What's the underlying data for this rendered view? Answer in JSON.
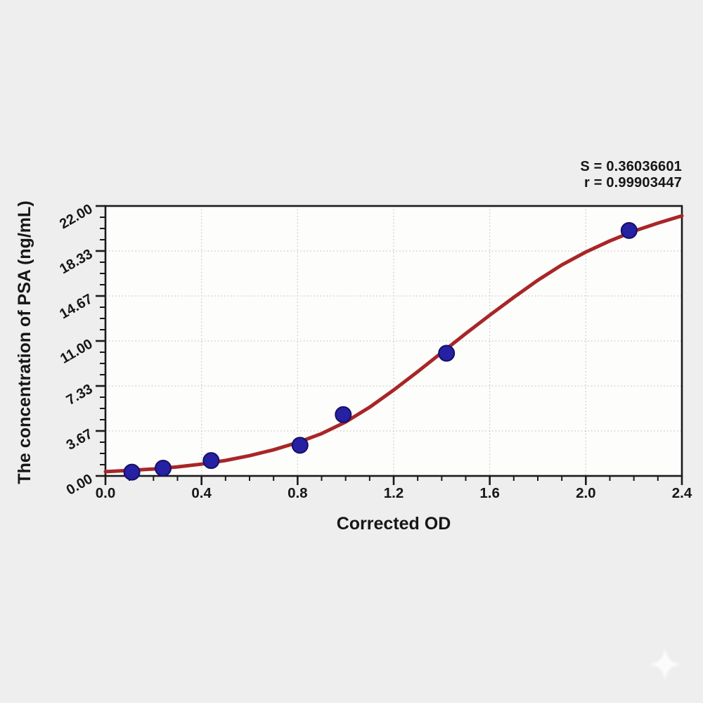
{
  "page": {
    "background": "#eeeeee"
  },
  "chart_data": {
    "type": "scatter",
    "title": "",
    "xlabel": "Corrected OD",
    "ylabel": "The concentration of PSA (ng/mL)",
    "xlim": [
      0,
      2.4
    ],
    "ylim": [
      0,
      22
    ],
    "grid": {
      "show": true,
      "style": "dotted"
    },
    "legend": "none",
    "x_ticks": {
      "values": [
        0,
        0.4,
        0.8,
        1.2,
        1.6,
        2.0,
        2.4
      ],
      "labels": [
        "0.0",
        "0.4",
        "0.8",
        "1.2",
        "1.6",
        "2.0",
        "2.4"
      ],
      "minor_step": 0.1
    },
    "y_ticks": {
      "values": [
        0,
        3.6667,
        7.3333,
        11,
        14.6667,
        18.3333,
        22
      ],
      "labels": [
        "0.00",
        "3.67",
        "7.33",
        "11.00",
        "14.67",
        "18.33",
        "22.00"
      ],
      "minor_divisions": 4,
      "label_rotation_deg": -30
    },
    "annotations": {
      "s_line": "S = 0.36036601",
      "r_line": "r = 0.99903447"
    },
    "series": [
      {
        "name": "standard-points",
        "type": "scatter",
        "marker": "circle",
        "points": [
          {
            "x": 0.11,
            "y": 0.31
          },
          {
            "x": 0.24,
            "y": 0.63
          },
          {
            "x": 0.44,
            "y": 1.25
          },
          {
            "x": 0.81,
            "y": 2.5
          },
          {
            "x": 0.99,
            "y": 5.0
          },
          {
            "x": 1.42,
            "y": 10.0
          },
          {
            "x": 2.18,
            "y": 20.0
          }
        ]
      },
      {
        "name": "fitted-curve",
        "type": "line",
        "x": [
          0,
          0.1,
          0.2,
          0.3,
          0.4,
          0.5,
          0.6,
          0.7,
          0.8,
          0.9,
          1.0,
          1.1,
          1.2,
          1.3,
          1.4,
          1.5,
          1.6,
          1.7,
          1.8,
          1.9,
          2.0,
          2.1,
          2.2,
          2.3,
          2.4
        ],
        "y": [
          0.35,
          0.45,
          0.57,
          0.74,
          0.96,
          1.26,
          1.65,
          2.13,
          2.72,
          3.45,
          4.4,
          5.6,
          7.0,
          8.5,
          10.05,
          11.6,
          13.1,
          14.55,
          15.95,
          17.2,
          18.25,
          19.15,
          19.95,
          20.6,
          21.2
        ]
      }
    ],
    "colors": {
      "curve": "#a82628",
      "marker": "#2620a2",
      "marker_edge": "#141066",
      "axis": "#1a1a1a",
      "grid": "#c6c6c6",
      "plot_bg": "#fdfdfc",
      "text": "#161616",
      "page_bg": "#eeeeee"
    }
  },
  "watermark": {
    "icon": "sparkle-star",
    "color": "#ffffff"
  }
}
